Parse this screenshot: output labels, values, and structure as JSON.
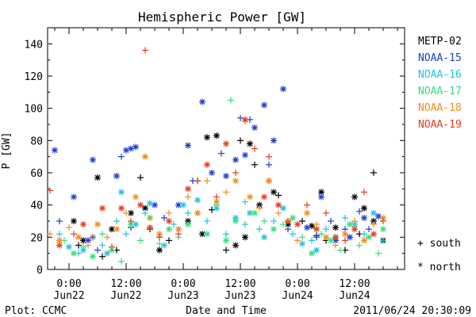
{
  "chart_data": {
    "type": "scatter",
    "title": "Hemispheric Power [GW]",
    "ylabel": "P [GW]",
    "xlabel": "Date and Time",
    "footer_left": "Plot: CCMC",
    "footer_right": "2011/06/24 20:30:09",
    "ylim": [
      0,
      150
    ],
    "yticks": [
      0,
      20,
      40,
      60,
      80,
      100,
      120,
      140
    ],
    "x_unit": "hours since 2011-06-22 00:00 UT",
    "xlim": [
      -4.5,
      70.5
    ],
    "xticks": [
      {
        "x": 0,
        "time": "0:00",
        "date": "Jun22"
      },
      {
        "x": 12,
        "time": "12:00",
        "date": "Jun22"
      },
      {
        "x": 24,
        "time": "0:00",
        "date": "Jun23"
      },
      {
        "x": 36,
        "time": "12:00",
        "date": "Jun23"
      },
      {
        "x": 48,
        "time": "0:00",
        "date": "Jun24"
      },
      {
        "x": 60,
        "time": "12:00",
        "date": "Jun24"
      }
    ],
    "grid": false,
    "legend_position": "right",
    "marker_legend": [
      {
        "symbol": "+",
        "label": "south"
      },
      {
        "symbol": "*",
        "label": "north"
      }
    ],
    "series": [
      {
        "name": "METP-02",
        "color": "#000000",
        "points": [
          [
            1,
            30,
            "n"
          ],
          [
            2,
            15,
            "s"
          ],
          [
            3,
            18,
            "n"
          ],
          [
            6,
            57,
            "n"
          ],
          [
            7,
            8,
            "s"
          ],
          [
            9,
            25,
            "n"
          ],
          [
            10,
            12,
            "s"
          ],
          [
            13,
            35,
            "n"
          ],
          [
            15,
            57,
            "s"
          ],
          [
            16,
            38,
            "n"
          ],
          [
            17,
            25,
            "s"
          ],
          [
            19,
            12,
            "n"
          ],
          [
            21,
            18,
            "s"
          ],
          [
            25,
            30,
            "n"
          ],
          [
            27,
            55,
            "s"
          ],
          [
            28,
            22,
            "n"
          ],
          [
            29,
            82,
            "n"
          ],
          [
            30,
            37,
            "s"
          ],
          [
            31,
            83,
            "n"
          ],
          [
            33,
            12,
            "s"
          ],
          [
            35,
            15,
            "n"
          ],
          [
            36,
            80,
            "s"
          ],
          [
            37,
            20,
            "n"
          ],
          [
            38,
            78,
            "n"
          ],
          [
            39,
            65,
            "s"
          ],
          [
            40,
            40,
            "n"
          ],
          [
            42,
            55,
            "s"
          ],
          [
            43,
            48,
            "n"
          ],
          [
            44,
            46,
            "s"
          ],
          [
            46,
            28,
            "n"
          ],
          [
            49,
            30,
            "s"
          ],
          [
            51,
            27,
            "n"
          ],
          [
            52,
            21,
            "s"
          ],
          [
            53,
            48,
            "n"
          ],
          [
            54,
            18,
            "s"
          ],
          [
            56,
            26,
            "n"
          ],
          [
            58,
            12,
            "s"
          ],
          [
            60,
            45,
            "n"
          ],
          [
            61,
            22,
            "s"
          ],
          [
            62,
            38,
            "n"
          ],
          [
            64,
            60,
            "s"
          ],
          [
            64,
            30,
            "n"
          ],
          [
            66,
            18,
            "n"
          ]
        ]
      },
      {
        "name": "NOAA-15",
        "color": "#1c3cd8",
        "points": [
          [
            -3,
            74,
            "n"
          ],
          [
            -2,
            30,
            "s"
          ],
          [
            1,
            45,
            "n"
          ],
          [
            4,
            18,
            "n"
          ],
          [
            5,
            68,
            "n"
          ],
          [
            6,
            12,
            "s"
          ],
          [
            10,
            58,
            "n"
          ],
          [
            11,
            70,
            "s"
          ],
          [
            12,
            74,
            "n"
          ],
          [
            13,
            75,
            "n"
          ],
          [
            13,
            26,
            "s"
          ],
          [
            14,
            76,
            "n"
          ],
          [
            18,
            40,
            "n"
          ],
          [
            20,
            32,
            "s"
          ],
          [
            23,
            40,
            "n"
          ],
          [
            25,
            77,
            "n"
          ],
          [
            26,
            55,
            "s"
          ],
          [
            28,
            104,
            "n"
          ],
          [
            30,
            60,
            "n"
          ],
          [
            32,
            72,
            "s"
          ],
          [
            33,
            58,
            "n"
          ],
          [
            35,
            68,
            "n"
          ],
          [
            36,
            94,
            "s"
          ],
          [
            37,
            71,
            "n"
          ],
          [
            38,
            93,
            "s"
          ],
          [
            39,
            88,
            "n"
          ],
          [
            41,
            102,
            "n"
          ],
          [
            42,
            65,
            "s"
          ],
          [
            43,
            80,
            "n"
          ],
          [
            45,
            112,
            "n"
          ],
          [
            46,
            25,
            "s"
          ],
          [
            50,
            26,
            "n"
          ],
          [
            52,
            20,
            "s"
          ],
          [
            53,
            45,
            "n"
          ],
          [
            55,
            30,
            "s"
          ],
          [
            56,
            18,
            "n"
          ],
          [
            58,
            25,
            "s"
          ],
          [
            59,
            20,
            "n"
          ],
          [
            61,
            36,
            "s"
          ],
          [
            62,
            32,
            "n"
          ],
          [
            63,
            25,
            "s"
          ],
          [
            65,
            33,
            "n"
          ]
        ]
      },
      {
        "name": "NOAA-16",
        "color": "#22c2e6",
        "points": [
          [
            -2,
            22,
            "s"
          ],
          [
            0,
            14,
            "n"
          ],
          [
            2,
            10,
            "s"
          ],
          [
            3,
            12,
            "n"
          ],
          [
            5,
            20,
            "n"
          ],
          [
            7,
            15,
            "s"
          ],
          [
            8,
            10,
            "n"
          ],
          [
            10,
            30,
            "s"
          ],
          [
            11,
            48,
            "n"
          ],
          [
            12,
            22,
            "s"
          ],
          [
            14,
            28,
            "n"
          ],
          [
            16,
            35,
            "s"
          ],
          [
            17,
            41,
            "n"
          ],
          [
            19,
            20,
            "s"
          ],
          [
            20,
            15,
            "n"
          ],
          [
            22,
            28,
            "s"
          ],
          [
            24,
            40,
            "n"
          ],
          [
            25,
            35,
            "s"
          ],
          [
            27,
            43,
            "n"
          ],
          [
            29,
            30,
            "s"
          ],
          [
            31,
            38,
            "n"
          ],
          [
            33,
            22,
            "s"
          ],
          [
            35,
            32,
            "n"
          ],
          [
            37,
            28,
            "s"
          ],
          [
            38,
            35,
            "n"
          ],
          [
            40,
            25,
            "s"
          ],
          [
            41,
            20,
            "n"
          ],
          [
            43,
            30,
            "s"
          ],
          [
            45,
            38,
            "n"
          ],
          [
            47,
            22,
            "s"
          ],
          [
            49,
            16,
            "n"
          ],
          [
            51,
            18,
            "s"
          ],
          [
            52,
            12,
            "n"
          ],
          [
            54,
            25,
            "s"
          ],
          [
            56,
            20,
            "n"
          ],
          [
            58,
            32,
            "s"
          ],
          [
            60,
            28,
            "n"
          ],
          [
            62,
            22,
            "s"
          ],
          [
            64,
            35,
            "n"
          ],
          [
            66,
            18,
            "s"
          ]
        ]
      },
      {
        "name": "NOAA-17",
        "color": "#32e07c",
        "points": [
          [
            -1,
            18,
            "s"
          ],
          [
            1,
            10,
            "n"
          ],
          [
            3,
            14,
            "s"
          ],
          [
            5,
            8,
            "n"
          ],
          [
            7,
            22,
            "s"
          ],
          [
            9,
            12,
            "n"
          ],
          [
            11,
            5,
            "s"
          ],
          [
            13,
            28,
            "n"
          ],
          [
            15,
            18,
            "s"
          ],
          [
            17,
            32,
            "n"
          ],
          [
            19,
            16,
            "s"
          ],
          [
            21,
            25,
            "n"
          ],
          [
            23,
            20,
            "s"
          ],
          [
            25,
            28,
            "n"
          ],
          [
            27,
            35,
            "s"
          ],
          [
            29,
            22,
            "n"
          ],
          [
            31,
            40,
            "s"
          ],
          [
            33,
            18,
            "n"
          ],
          [
            34,
            105,
            "s"
          ],
          [
            35,
            30,
            "n"
          ],
          [
            37,
            42,
            "s"
          ],
          [
            39,
            35,
            "n"
          ],
          [
            41,
            30,
            "s"
          ],
          [
            43,
            25,
            "n"
          ],
          [
            45,
            28,
            "s"
          ],
          [
            47,
            32,
            "n"
          ],
          [
            49,
            20,
            "s"
          ],
          [
            51,
            10,
            "n"
          ],
          [
            53,
            22,
            "s"
          ],
          [
            55,
            18,
            "n"
          ],
          [
            57,
            12,
            "s"
          ],
          [
            59,
            28,
            "n"
          ],
          [
            61,
            15,
            "s"
          ],
          [
            63,
            20,
            "n"
          ],
          [
            65,
            10,
            "s"
          ],
          [
            66,
            25,
            "n"
          ]
        ]
      },
      {
        "name": "NOAA-18",
        "color": "#f28c1c",
        "points": [
          [
            -4,
            22,
            "s"
          ],
          [
            -2,
            18,
            "n"
          ],
          [
            0,
            26,
            "s"
          ],
          [
            2,
            20,
            "n"
          ],
          [
            4,
            15,
            "s"
          ],
          [
            6,
            28,
            "n"
          ],
          [
            8,
            20,
            "s"
          ],
          [
            10,
            25,
            "n"
          ],
          [
            12,
            35,
            "s"
          ],
          [
            14,
            45,
            "n"
          ],
          [
            16,
            70,
            "n"
          ],
          [
            17,
            32,
            "s"
          ],
          [
            19,
            22,
            "n"
          ],
          [
            21,
            35,
            "s"
          ],
          [
            23,
            25,
            "n"
          ],
          [
            25,
            45,
            "s"
          ],
          [
            27,
            35,
            "n"
          ],
          [
            29,
            55,
            "s"
          ],
          [
            31,
            42,
            "n"
          ],
          [
            33,
            48,
            "s"
          ],
          [
            35,
            55,
            "n"
          ],
          [
            37,
            92,
            "s"
          ],
          [
            38,
            45,
            "n"
          ],
          [
            40,
            38,
            "s"
          ],
          [
            42,
            55,
            "n"
          ],
          [
            44,
            35,
            "s"
          ],
          [
            46,
            30,
            "n"
          ],
          [
            48,
            18,
            "s"
          ],
          [
            50,
            35,
            "n"
          ],
          [
            52,
            28,
            "s"
          ],
          [
            54,
            20,
            "n"
          ],
          [
            56,
            15,
            "s"
          ],
          [
            58,
            22,
            "n"
          ],
          [
            60,
            30,
            "s"
          ],
          [
            62,
            18,
            "n"
          ],
          [
            64,
            28,
            "s"
          ],
          [
            66,
            32,
            "n"
          ]
        ]
      },
      {
        "name": "NOAA-19",
        "color": "#e63c1c",
        "points": [
          [
            -4,
            49,
            "s"
          ],
          [
            -2,
            15,
            "n"
          ],
          [
            1,
            22,
            "s"
          ],
          [
            3,
            28,
            "n"
          ],
          [
            5,
            20,
            "s"
          ],
          [
            7,
            38,
            "n"
          ],
          [
            9,
            14,
            "s"
          ],
          [
            11,
            38,
            "n"
          ],
          [
            13,
            30,
            "s"
          ],
          [
            15,
            40,
            "n"
          ],
          [
            16,
            136,
            "s"
          ],
          [
            17,
            26,
            "n"
          ],
          [
            19,
            20,
            "s"
          ],
          [
            21,
            30,
            "n"
          ],
          [
            23,
            22,
            "s"
          ],
          [
            25,
            50,
            "n"
          ],
          [
            27,
            55,
            "s"
          ],
          [
            29,
            65,
            "n"
          ],
          [
            31,
            45,
            "s"
          ],
          [
            33,
            78,
            "n"
          ],
          [
            35,
            60,
            "s"
          ],
          [
            37,
            93,
            "n"
          ],
          [
            39,
            75,
            "s"
          ],
          [
            41,
            45,
            "n"
          ],
          [
            42,
            70,
            "s"
          ],
          [
            44,
            40,
            "n"
          ],
          [
            46,
            30,
            "s"
          ],
          [
            48,
            28,
            "n"
          ],
          [
            50,
            40,
            "s"
          ],
          [
            52,
            25,
            "n"
          ],
          [
            54,
            35,
            "s"
          ],
          [
            56,
            20,
            "n"
          ],
          [
            58,
            18,
            "s"
          ],
          [
            60,
            25,
            "n"
          ],
          [
            62,
            48,
            "s"
          ],
          [
            64,
            22,
            "n"
          ],
          [
            66,
            30,
            "s"
          ]
        ]
      }
    ]
  }
}
